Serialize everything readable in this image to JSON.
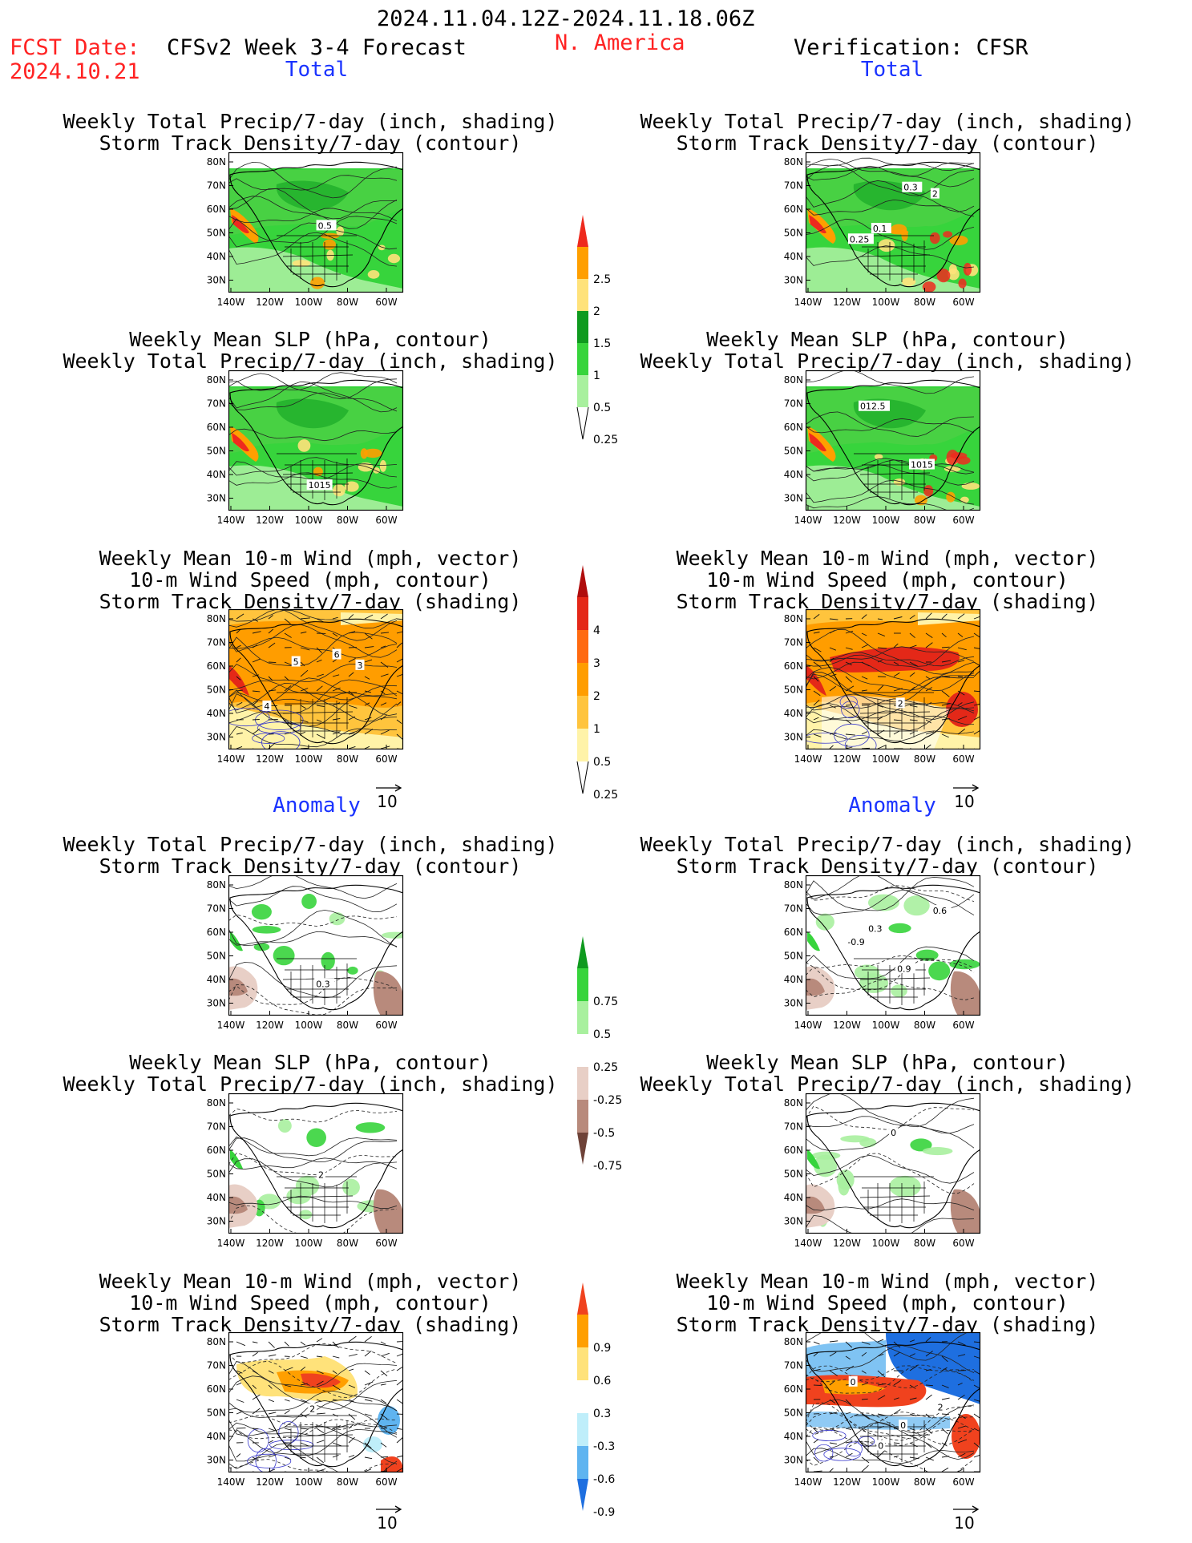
{
  "header": {
    "period": "2024.11.04.12Z-2024.11.18.06Z",
    "fcst_label": "FCST Date:",
    "fcst_date": "2024.10.21",
    "model": "CFSv2 Week 3-4 Forecast",
    "region": "N. America",
    "verification": "Verification: CFSR"
  },
  "sections": {
    "total": "Total",
    "anomaly": "Anomaly"
  },
  "titles": {
    "t1": [
      "Weekly Total Precip/7-day (inch, shading)",
      "Storm Track Density/7-day (contour)"
    ],
    "t2": [
      "Weekly Mean SLP (hPa, contour)",
      "Weekly Total Precip/7-day (inch, shading)"
    ],
    "t3": [
      "Weekly Mean 10-m Wind (mph, vector)",
      "10-m Wind Speed (mph, contour)",
      "Storm Track Density/7-day (shading)"
    ]
  },
  "axes": {
    "lat": [
      "80N",
      "70N",
      "60N",
      "50N",
      "40N",
      "30N"
    ],
    "lon": [
      "140W",
      "120W",
      "100W",
      "80W",
      "60W"
    ]
  },
  "vector_ref": "10",
  "panel_labels": {
    "lt1": [
      "0.5"
    ],
    "rt1": [
      "0.25",
      "0.1",
      "0.3",
      "2"
    ],
    "lt2": [
      "1015"
    ],
    "rt2": [
      "012.5",
      "1015"
    ],
    "lt3": [
      "4",
      "5",
      "6",
      "3"
    ],
    "rt3": [
      "2"
    ],
    "la1": [
      "0.3"
    ],
    "ra1": [
      "-0.9",
      "0.3",
      "0.9",
      "0.6"
    ],
    "la2": [
      "2"
    ],
    "ra2": [
      "0"
    ],
    "la3": [
      "2"
    ],
    "ra3": [
      "0",
      "0",
      "0",
      "2"
    ]
  },
  "colorbars": {
    "precip": {
      "labels": [
        "2.5",
        "2",
        "1.5",
        "1",
        "0.5",
        "0.25"
      ],
      "colors": [
        "#ee2a1e",
        "#ff9f00",
        "#ffe27a",
        "#0f9a1f",
        "#37d43c",
        "#a8f09e"
      ]
    },
    "storm": {
      "labels": [
        "4",
        "3",
        "2",
        "1",
        "0.5",
        "0.25"
      ],
      "colors": [
        "#b00d0d",
        "#e42818",
        "#ff6a10",
        "#ff9d00",
        "#ffc43d",
        "#fff3a8"
      ]
    },
    "precip_anom": {
      "labels": [
        "0.75",
        "0.5",
        "0.25",
        "-0.25",
        "-0.5",
        "-0.75"
      ],
      "colors": [
        "#0f9a1f",
        "#37d43c",
        "#a8f09e",
        "#ffffff",
        "#e8cfc6",
        "#b88a7c",
        "#6e4238"
      ]
    },
    "storm_anom": {
      "labels": [
        "0.9",
        "0.6",
        "0.3",
        "-0.3",
        "-0.6",
        "-0.9"
      ],
      "colors": [
        "#f0421e",
        "#ff9f00",
        "#ffe27a",
        "#ffffff",
        "#bfeefa",
        "#5fb4f0",
        "#1e6fe0"
      ]
    }
  }
}
